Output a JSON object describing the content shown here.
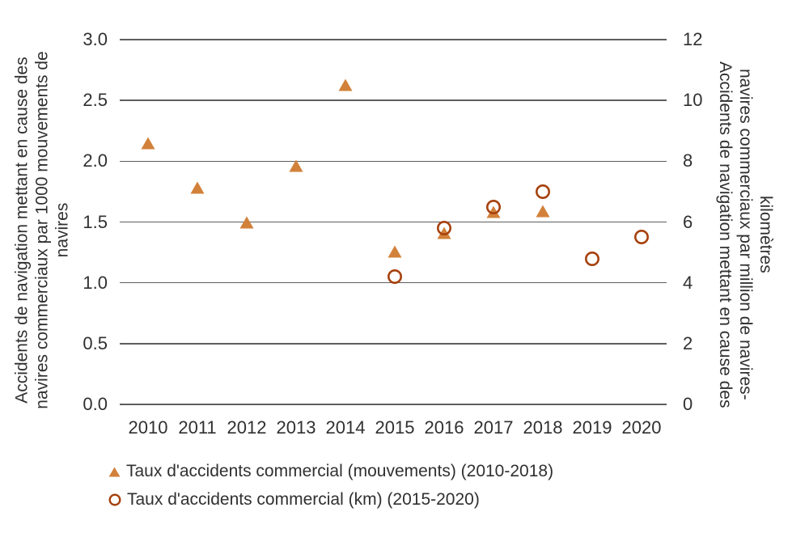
{
  "chart_data": {
    "type": "scatter",
    "title": "",
    "grid": "horizontal",
    "legend_position": "bottom-left",
    "x_categories": [
      "2010",
      "2011",
      "2012",
      "2013",
      "2014",
      "2015",
      "2016",
      "2017",
      "2018",
      "2019",
      "2020"
    ],
    "left_axis": {
      "title_lines": [
        "Accidents de navigation mettant en cause des",
        "navires commerciaux par 1000 mouvements de",
        "navires"
      ],
      "ticks": [
        "0.0",
        "0.5",
        "1.0",
        "1.5",
        "2.0",
        "2.5",
        "3.0"
      ],
      "range": [
        0,
        3
      ]
    },
    "right_axis": {
      "title_lines": [
        "Accidents de navigation mettant en cause des",
        "navires commerciaux par million de navires-",
        "kilomètres"
      ],
      "ticks": [
        "0",
        "2",
        "4",
        "6",
        "8",
        "10",
        "12"
      ],
      "range": [
        0,
        12
      ]
    },
    "series": [
      {
        "name": "Taux d'accidents commercial (mouvements) (2010-2018)",
        "axis": "left",
        "marker": "filled-triangle",
        "color": "#D2813A",
        "points": [
          {
            "x": "2010",
            "y": 2.15
          },
          {
            "x": "2011",
            "y": 1.78
          },
          {
            "x": "2012",
            "y": 1.5
          },
          {
            "x": "2013",
            "y": 1.96
          },
          {
            "x": "2014",
            "y": 2.63
          },
          {
            "x": "2015",
            "y": 1.26
          },
          {
            "x": "2016",
            "y": 1.41
          },
          {
            "x": "2017",
            "y": 1.58
          },
          {
            "x": "2018",
            "y": 1.59
          }
        ]
      },
      {
        "name": "Taux d'accidents commercial (km) (2015-2020)",
        "axis": "right",
        "marker": "open-circle",
        "color": "#A6410D",
        "points": [
          {
            "x": "2015",
            "y": 4.2
          },
          {
            "x": "2016",
            "y": 5.8
          },
          {
            "x": "2017",
            "y": 6.5
          },
          {
            "x": "2018",
            "y": 7.0
          },
          {
            "x": "2019",
            "y": 4.8
          },
          {
            "x": "2020",
            "y": 5.5
          }
        ]
      }
    ]
  },
  "style": {
    "triangle_fill": "#D2813A",
    "circle_stroke": "#A6410D",
    "gridline_color": "#5E5E5E",
    "text_color": "#303030",
    "background": "#FFFFFF"
  }
}
